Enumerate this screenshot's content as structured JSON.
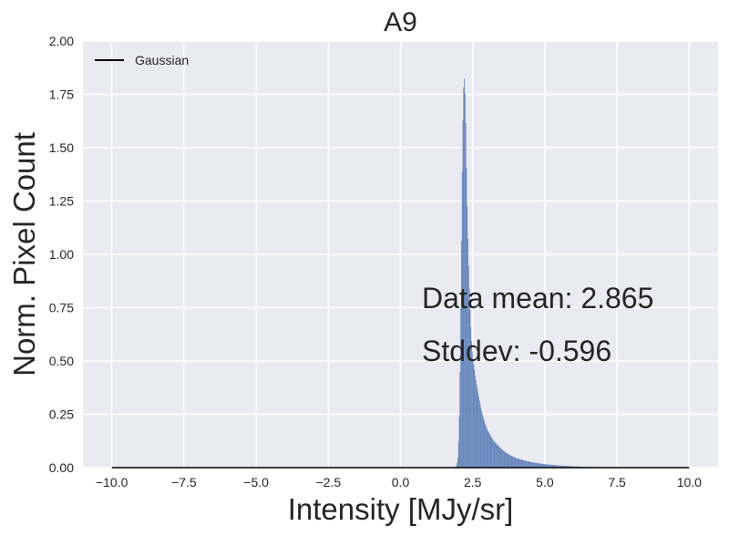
{
  "chart_data": {
    "type": "histogram",
    "title": "A9",
    "xlabel": "Intensity [MJy/sr]",
    "ylabel": "Norm. Pixel Count",
    "xlim": [
      -11,
      11
    ],
    "ylim": [
      0,
      2.0
    ],
    "xticks": [
      -10.0,
      -7.5,
      -5.0,
      -2.5,
      0.0,
      2.5,
      5.0,
      7.5,
      10.0
    ],
    "xtick_labels": [
      "−10.0",
      "−7.5",
      "−5.0",
      "−2.5",
      "0.0",
      "2.5",
      "5.0",
      "7.5",
      "10.0"
    ],
    "yticks": [
      0.0,
      0.25,
      0.5,
      0.75,
      1.0,
      1.25,
      1.5,
      1.75,
      2.0
    ],
    "ytick_labels": [
      "0.00",
      "0.25",
      "0.50",
      "0.75",
      "1.00",
      "1.25",
      "1.50",
      "1.75",
      "2.00"
    ],
    "grid": true,
    "legend_position": "top-left",
    "series": [
      {
        "name": "Gaussian",
        "kind": "line",
        "color": "#000000",
        "x": [
          -10.0,
          10.0
        ],
        "y": [
          0.0,
          0.0
        ]
      },
      {
        "kind": "histogram",
        "color": "#4c72b0",
        "bins": [
          [
            1.85,
            0.0
          ],
          [
            1.9,
            0.003
          ],
          [
            1.95,
            0.01
          ],
          [
            2.0,
            0.06
          ],
          [
            2.05,
            0.3
          ],
          [
            2.1,
            0.9
          ],
          [
            2.15,
            1.55
          ],
          [
            2.2,
            1.86
          ],
          [
            2.25,
            1.72
          ],
          [
            2.3,
            1.3
          ],
          [
            2.35,
            1.0
          ],
          [
            2.4,
            0.78
          ],
          [
            2.45,
            0.62
          ],
          [
            2.5,
            0.52
          ],
          [
            2.6,
            0.42
          ],
          [
            2.7,
            0.34
          ],
          [
            2.8,
            0.27
          ],
          [
            2.9,
            0.22
          ],
          [
            3.0,
            0.18
          ],
          [
            3.2,
            0.13
          ],
          [
            3.4,
            0.1
          ],
          [
            3.6,
            0.075
          ],
          [
            3.8,
            0.058
          ],
          [
            4.0,
            0.045
          ],
          [
            4.3,
            0.033
          ],
          [
            4.6,
            0.024
          ],
          [
            5.0,
            0.016
          ],
          [
            5.5,
            0.01
          ],
          [
            6.0,
            0.006
          ],
          [
            6.5,
            0.0035
          ],
          [
            7.0,
            0.002
          ],
          [
            8.0,
            0.0008
          ],
          [
            9.0,
            0.0003
          ],
          [
            10.0,
            0.0
          ]
        ]
      }
    ],
    "annotations": [
      "Data mean: 2.865",
      "Stddev: -0.596"
    ]
  }
}
